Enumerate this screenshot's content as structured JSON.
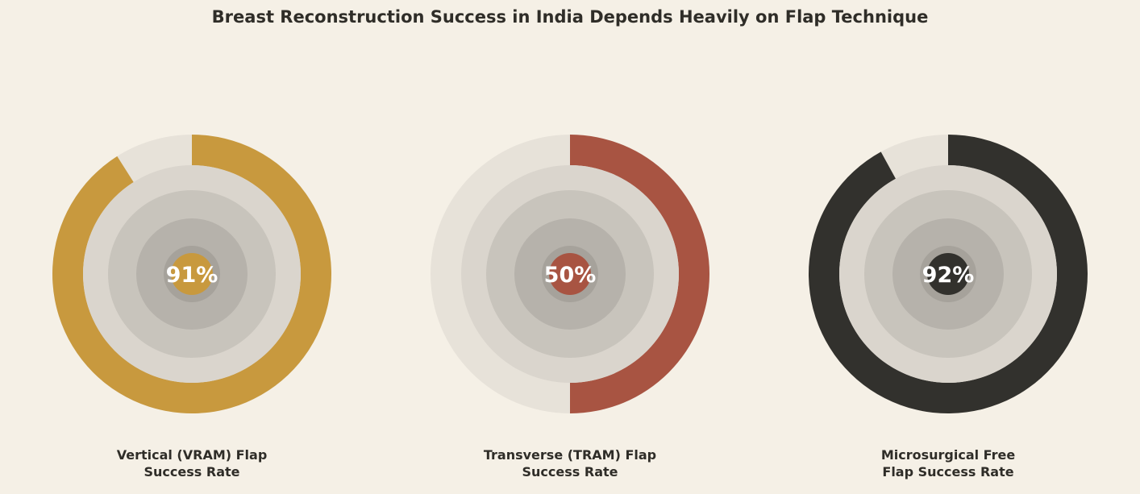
{
  "title": "Breast Reconstruction Success in India Depends Heavily on Flap Technique",
  "colors": {
    "background": "#f5f0e6",
    "track": "#e7e2d9",
    "rings": [
      "#dad5cd",
      "#c8c4bc",
      "#b6b2ab",
      "#a6a29b"
    ]
  },
  "chart_data": [
    {
      "type": "donut",
      "value": 91,
      "max": 100,
      "label": "91%",
      "caption": "Vertical (VRAM) Flap\nSuccess Rate",
      "color": "#c8993e"
    },
    {
      "type": "donut",
      "value": 50,
      "max": 100,
      "label": "50%",
      "caption": "Transverse (TRAM) Flap\nSuccess Rate",
      "color": "#a85442"
    },
    {
      "type": "donut",
      "value": 92,
      "max": 100,
      "label": "92%",
      "caption": "Microsurgical Free\nFlap Success Rate",
      "color": "#32312d"
    }
  ]
}
